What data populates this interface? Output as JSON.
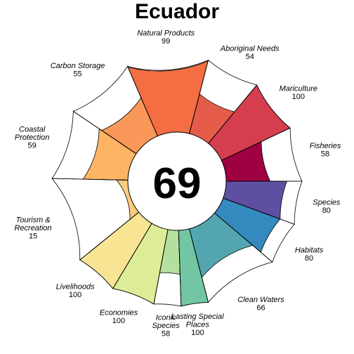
{
  "chart_data": {
    "type": "flower",
    "title": "Ecuador",
    "score": "69",
    "rlim": [
      0,
      100
    ],
    "goals": [
      {
        "label": [
          "Fisheries"
        ],
        "value": 58,
        "weight": 1,
        "color": "#9E0142"
      },
      {
        "label": [
          "Mariculture"
        ],
        "value": 100,
        "weight": 1,
        "color": "#D53E4F"
      },
      {
        "label": [
          "Aboriginal Needs"
        ],
        "value": 54,
        "weight": 1,
        "color": "#E65C4A"
      },
      {
        "label": [
          "Natural Products"
        ],
        "value": 99,
        "weight": 1.5,
        "color": "#F46D43"
      },
      {
        "label": [
          "Carbon Storage"
        ],
        "value": 55,
        "weight": 1.3,
        "color": "#F99858"
      },
      {
        "label": [
          "Coastal",
          "Protection"
        ],
        "value": 59,
        "weight": 1.3,
        "color": "#FDB465"
      },
      {
        "label": [
          "Tourism &",
          "Recreation"
        ],
        "value": 15,
        "weight": 1.6,
        "color": "#FDCB7E"
      },
      {
        "label": [
          "Livelihoods"
        ],
        "value": 100,
        "weight": 0.8,
        "color": "#F8E594"
      },
      {
        "label": [
          "Economies"
        ],
        "value": 100,
        "weight": 0.8,
        "color": "#DDED97"
      },
      {
        "label": [
          "Iconic",
          "Species"
        ],
        "value": 58,
        "weight": 0.5,
        "color": "#B5DF9F"
      },
      {
        "label": [
          "Lasting Special",
          "Places"
        ],
        "value": 100,
        "weight": 0.5,
        "color": "#72C6A4"
      },
      {
        "label": [
          "Clean Waters"
        ],
        "value": 66,
        "weight": 1.4,
        "color": "#53A6AF"
      },
      {
        "label": [
          "Habitats"
        ],
        "value": 80,
        "weight": 0.8,
        "color": "#3489BF"
      },
      {
        "label": [
          "Species"
        ],
        "value": 80,
        "weight": 0.8,
        "color": "#5E4FA2"
      }
    ]
  }
}
